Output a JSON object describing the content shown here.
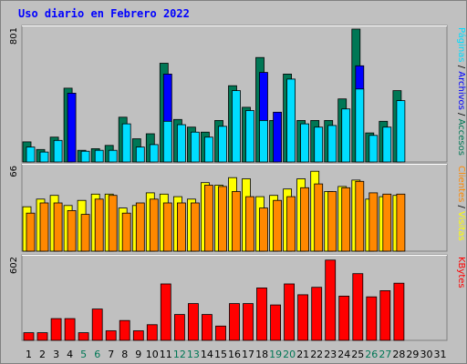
{
  "title": "Uso diario en Febrero 2022",
  "colors": {
    "visits": "#ffff00",
    "pages": "#00ddff",
    "hits": "#007755",
    "files": "#0000ff",
    "clients": "#ff8800",
    "traffic": "#ff0000",
    "panel_bg": "#c0c0c0",
    "frame_border": "#808080",
    "grid": "#ffffff",
    "title": "#0000ff",
    "weekend_label": "#007755"
  },
  "chart_data": [
    {
      "type": "bar",
      "panel": "top",
      "ymax_label": "801",
      "ymax": 801,
      "right_labels": [
        "Páginas",
        "/",
        "Archivos",
        "/",
        "Accesos"
      ],
      "categories": [
        "1",
        "2",
        "3",
        "4",
        "5",
        "6",
        "7",
        "8",
        "9",
        "10",
        "11",
        "12",
        "13",
        "14",
        "15",
        "16",
        "17",
        "18",
        "19",
        "20",
        "21",
        "22",
        "23",
        "24",
        "25",
        "26",
        "27",
        "28",
        "29",
        "30",
        "31"
      ],
      "series": [
        {
          "key": "hits",
          "values": [
            121,
            75,
            150,
            445,
            70,
            80,
            100,
            270,
            140,
            170,
            595,
            256,
            210,
            180,
            250,
            460,
            330,
            630,
            250,
            530,
            250,
            250,
            250,
            380,
            801,
            175,
            245,
            430,
            0,
            0,
            0
          ]
        },
        {
          "key": "files",
          "values": [
            0,
            0,
            0,
            415,
            0,
            0,
            0,
            0,
            0,
            0,
            530,
            0,
            0,
            0,
            0,
            0,
            0,
            540,
            300,
            0,
            0,
            0,
            0,
            0,
            580,
            0,
            0,
            0,
            0,
            0,
            0
          ]
        },
        {
          "key": "pages",
          "values": [
            90,
            60,
            130,
            0,
            65,
            70,
            70,
            230,
            90,
            105,
            245,
            225,
            180,
            150,
            215,
            430,
            310,
            250,
            0,
            500,
            230,
            210,
            220,
            320,
            440,
            160,
            210,
            370,
            0,
            0,
            0
          ]
        }
      ]
    },
    {
      "type": "bar",
      "panel": "middle",
      "ymax_label": "66",
      "ymax": 66,
      "right_labels": [
        "Clientes",
        "/",
        "Visitas"
      ],
      "categories": [
        "1",
        "2",
        "3",
        "4",
        "5",
        "6",
        "7",
        "8",
        "9",
        "10",
        "11",
        "12",
        "13",
        "14",
        "15",
        "16",
        "17",
        "18",
        "19",
        "20",
        "21",
        "22",
        "23",
        "24",
        "25",
        "26",
        "27",
        "28",
        "29",
        "30",
        "31"
      ],
      "series": [
        {
          "key": "visits",
          "values": [
            35,
            41,
            44,
            36,
            40,
            45,
            45,
            34,
            36,
            46,
            45,
            43,
            41,
            54,
            52,
            58,
            57,
            43,
            44,
            49,
            57,
            63,
            47,
            51,
            56,
            41,
            43,
            44,
            0,
            0,
            0
          ]
        },
        {
          "key": "clients",
          "values": [
            30,
            38,
            38,
            32,
            29,
            41,
            44,
            30,
            38,
            41,
            38,
            38,
            38,
            52,
            51,
            47,
            43,
            34,
            40,
            43,
            50,
            53,
            47,
            50,
            55,
            46,
            45,
            45,
            0,
            0,
            0
          ]
        }
      ]
    },
    {
      "type": "bar",
      "panel": "bottom",
      "ymax_label": "602",
      "ymax": 602,
      "right_labels": [
        "KBytes"
      ],
      "categories": [
        "1",
        "2",
        "3",
        "4",
        "5",
        "6",
        "7",
        "8",
        "9",
        "10",
        "11",
        "12",
        "13",
        "14",
        "15",
        "16",
        "17",
        "18",
        "19",
        "20",
        "21",
        "22",
        "23",
        "24",
        "25",
        "26",
        "27",
        "28",
        "29",
        "30",
        "31"
      ],
      "series": [
        {
          "key": "traffic",
          "values": [
            56,
            56,
            160,
            160,
            56,
            230,
            70,
            146,
            70,
            115,
            415,
            190,
            270,
            190,
            105,
            270,
            270,
            385,
            260,
            415,
            335,
            390,
            590,
            325,
            490,
            320,
            365,
            420,
            0,
            0,
            0
          ]
        }
      ]
    }
  ],
  "x_labels": [
    {
      "text": "1",
      "weekend": false
    },
    {
      "text": "2",
      "weekend": false
    },
    {
      "text": "3",
      "weekend": false
    },
    {
      "text": "4",
      "weekend": false
    },
    {
      "text": "5",
      "weekend": true
    },
    {
      "text": "6",
      "weekend": true
    },
    {
      "text": "7",
      "weekend": false
    },
    {
      "text": "8",
      "weekend": false
    },
    {
      "text": "9",
      "weekend": false
    },
    {
      "text": "10",
      "weekend": false
    },
    {
      "text": "11",
      "weekend": false
    },
    {
      "text": "12",
      "weekend": true
    },
    {
      "text": "13",
      "weekend": true
    },
    {
      "text": "14",
      "weekend": false
    },
    {
      "text": "15",
      "weekend": false
    },
    {
      "text": "16",
      "weekend": false
    },
    {
      "text": "17",
      "weekend": false
    },
    {
      "text": "18",
      "weekend": false
    },
    {
      "text": "19",
      "weekend": true
    },
    {
      "text": "20",
      "weekend": true
    },
    {
      "text": "21",
      "weekend": false
    },
    {
      "text": "22",
      "weekend": false
    },
    {
      "text": "23",
      "weekend": false
    },
    {
      "text": "24",
      "weekend": false
    },
    {
      "text": "25",
      "weekend": false
    },
    {
      "text": "26",
      "weekend": true
    },
    {
      "text": "27",
      "weekend": true
    },
    {
      "text": "28",
      "weekend": false
    },
    {
      "text": "29",
      "weekend": false
    },
    {
      "text": "30",
      "weekend": false
    },
    {
      "text": "31",
      "weekend": false
    }
  ]
}
